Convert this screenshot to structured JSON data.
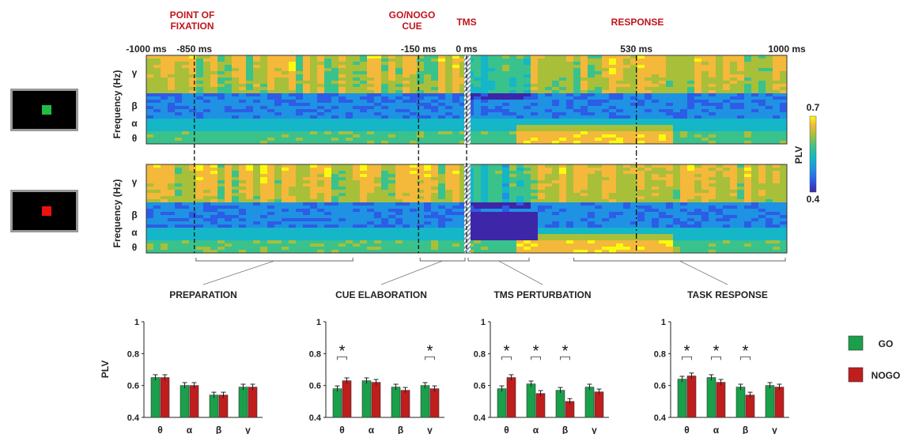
{
  "events": {
    "fixation": "POINT OF\nFIXATION",
    "cue": "GO/NOGO\nCUE",
    "tms": "TMS",
    "response": "RESPONSE"
  },
  "time_ticks": [
    {
      "t": -1000,
      "label": "-1000 ms"
    },
    {
      "t": -850,
      "label": "-850 ms"
    },
    {
      "t": -150,
      "label": "-150 ms"
    },
    {
      "t": 0,
      "label": "0 ms"
    },
    {
      "t": 530,
      "label": "530 ms"
    },
    {
      "t": 1000,
      "label": "1000 ms"
    }
  ],
  "heatmap_ylabel": "Frequency (Hz)",
  "freq_bands": [
    "γ",
    "β",
    "α",
    "θ"
  ],
  "colorbar": {
    "label": "PLV",
    "max": "0.7",
    "min": "0.4",
    "colors": [
      "#3e26a8",
      "#2d5ce6",
      "#1f92e3",
      "#14b6c8",
      "#3ac28c",
      "#a8bf3a",
      "#f4b83a",
      "#f9fb0e"
    ]
  },
  "stimuli": {
    "go_color": "#22bb44",
    "nogo_color": "#ee1111"
  },
  "phases": [
    "PREPARATION",
    "CUE ELABORATION",
    "TMS PERTURBATION",
    "TASK RESPONSE"
  ],
  "legend": [
    {
      "name": "GO",
      "color": "#1a9f4a"
    },
    {
      "name": "NOGO",
      "color": "#c01d1d"
    }
  ],
  "bar_ylabel": "PLV",
  "significance_mark": "*",
  "chart_data": [
    {
      "type": "bar",
      "title": "PREPARATION",
      "categories": [
        "θ",
        "α",
        "β",
        "γ"
      ],
      "ylabel": "PLV",
      "ylim": [
        0.4,
        1
      ],
      "yticks": [
        "0.4",
        "0.6",
        "0.8",
        "1"
      ],
      "series": [
        {
          "name": "GO",
          "values": [
            0.65,
            0.6,
            0.54,
            0.59
          ]
        },
        {
          "name": "NOGO",
          "values": [
            0.65,
            0.6,
            0.54,
            0.59
          ]
        }
      ],
      "significant": [
        false,
        false,
        false,
        false
      ]
    },
    {
      "type": "bar",
      "title": "CUE ELABORATION",
      "categories": [
        "θ",
        "α",
        "β",
        "γ"
      ],
      "ylabel": "",
      "ylim": [
        0.4,
        1
      ],
      "yticks": [
        "0.4",
        "0.6",
        "0.8",
        "1"
      ],
      "series": [
        {
          "name": "GO",
          "values": [
            0.58,
            0.63,
            0.59,
            0.6
          ]
        },
        {
          "name": "NOGO",
          "values": [
            0.63,
            0.62,
            0.57,
            0.58
          ]
        }
      ],
      "significant": [
        true,
        false,
        false,
        true
      ]
    },
    {
      "type": "bar",
      "title": "TMS PERTURBATION",
      "categories": [
        "θ",
        "α",
        "β",
        "γ"
      ],
      "ylabel": "",
      "ylim": [
        0.4,
        1
      ],
      "yticks": [
        "0.4",
        "0.6",
        "0.8",
        "1"
      ],
      "series": [
        {
          "name": "GO",
          "values": [
            0.58,
            0.61,
            0.57,
            0.59
          ]
        },
        {
          "name": "NOGO",
          "values": [
            0.65,
            0.55,
            0.5,
            0.56
          ]
        }
      ],
      "significant": [
        true,
        true,
        true,
        false
      ]
    },
    {
      "type": "bar",
      "title": "TASK RESPONSE",
      "categories": [
        "θ",
        "α",
        "β",
        "γ"
      ],
      "ylabel": "",
      "ylim": [
        0.4,
        1
      ],
      "yticks": [
        "0.4",
        "0.6",
        "0.8",
        "1"
      ],
      "series": [
        {
          "name": "GO",
          "values": [
            0.64,
            0.65,
            0.59,
            0.6
          ]
        },
        {
          "name": "NOGO",
          "values": [
            0.66,
            0.62,
            0.54,
            0.59
          ]
        }
      ],
      "significant": [
        true,
        true,
        true,
        false
      ]
    }
  ]
}
